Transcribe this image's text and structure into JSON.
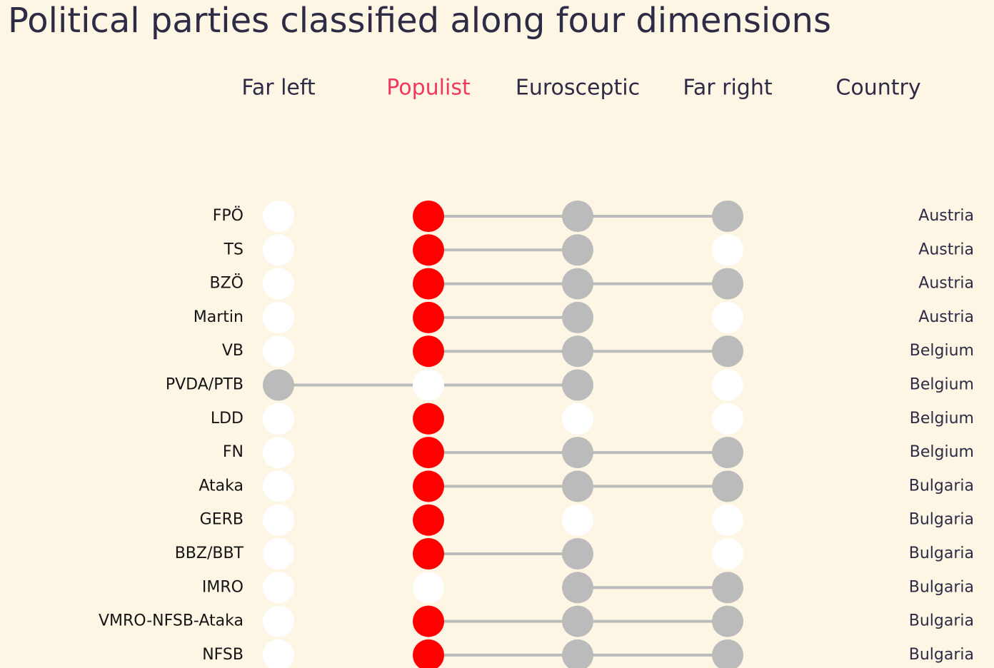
{
  "header": {
    "title": "Political parties classified along four dimensions"
  },
  "colors": {
    "background": "#fdf6e5",
    "highlight": "#ff0000",
    "member": "#bbbbbb",
    "non_member": "#ffffff",
    "connector": "#bbbbbb",
    "active_header": "#f0385a",
    "header_text": "#2d2b45"
  },
  "chart_data": {
    "type": "dot-matrix",
    "title": "Political parties classified along four dimensions",
    "columns": [
      "Far left",
      "Populist",
      "Eurosceptic",
      "Far right"
    ],
    "country_header": "Country",
    "highlighted_column": "Populist",
    "rows": [
      {
        "party": "FPÖ",
        "far_left": false,
        "populist": true,
        "eurosceptic": true,
        "far_right": true,
        "country": "Austria"
      },
      {
        "party": "TS",
        "far_left": false,
        "populist": true,
        "eurosceptic": true,
        "far_right": false,
        "country": "Austria"
      },
      {
        "party": "BZÖ",
        "far_left": false,
        "populist": true,
        "eurosceptic": true,
        "far_right": true,
        "country": "Austria"
      },
      {
        "party": "Martin",
        "far_left": false,
        "populist": true,
        "eurosceptic": true,
        "far_right": false,
        "country": "Austria"
      },
      {
        "party": "VB",
        "far_left": false,
        "populist": true,
        "eurosceptic": true,
        "far_right": true,
        "country": "Belgium"
      },
      {
        "party": "PVDA/PTB",
        "far_left": true,
        "populist": false,
        "eurosceptic": true,
        "far_right": false,
        "country": "Belgium"
      },
      {
        "party": "LDD",
        "far_left": false,
        "populist": true,
        "eurosceptic": false,
        "far_right": false,
        "country": "Belgium"
      },
      {
        "party": "FN",
        "far_left": false,
        "populist": true,
        "eurosceptic": true,
        "far_right": true,
        "country": "Belgium"
      },
      {
        "party": "Ataka",
        "far_left": false,
        "populist": true,
        "eurosceptic": true,
        "far_right": true,
        "country": "Bulgaria"
      },
      {
        "party": "GERB",
        "far_left": false,
        "populist": true,
        "eurosceptic": false,
        "far_right": false,
        "country": "Bulgaria"
      },
      {
        "party": "BBZ/BBT",
        "far_left": false,
        "populist": true,
        "eurosceptic": true,
        "far_right": false,
        "country": "Bulgaria"
      },
      {
        "party": "IMRO",
        "far_left": false,
        "populist": false,
        "eurosceptic": true,
        "far_right": true,
        "country": "Bulgaria"
      },
      {
        "party": "VMRO-NFSB-Ataka",
        "far_left": false,
        "populist": true,
        "eurosceptic": true,
        "far_right": true,
        "country": "Bulgaria"
      },
      {
        "party": "NFSB",
        "far_left": false,
        "populist": true,
        "eurosceptic": true,
        "far_right": true,
        "country": "Bulgaria"
      }
    ]
  }
}
